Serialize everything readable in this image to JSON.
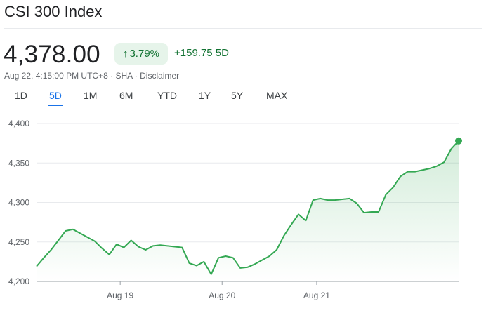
{
  "header": {
    "title": "CSI 300 Index"
  },
  "quote": {
    "price": "4,378.00",
    "pct_change": "3.79%",
    "abs_change": "+159.75 5D",
    "timestamp": "Aug 22, 4:15:00 PM UTC+8",
    "exchange": "SHA",
    "disclaimer": "Disclaimer",
    "separator": "·",
    "up_color": "#137333",
    "up_bg": "#e6f4ea"
  },
  "ranges": [
    "1D",
    "5D",
    "1M",
    "6M",
    "YTD",
    "1Y",
    "5Y",
    "MAX"
  ],
  "active_range": "5D",
  "chart_data": {
    "type": "area",
    "color": "#34a853",
    "ylim": [
      4200,
      4400
    ],
    "y_ticks": [
      "4,400",
      "4,350",
      "4,300",
      "4,250",
      "4,200"
    ],
    "y_tick_values": [
      4400,
      4350,
      4300,
      4250,
      4200
    ],
    "x_ticks": [
      "Aug 19",
      "Aug 20",
      "Aug 21"
    ],
    "x_tick_index": [
      11.5,
      25.5,
      38.5
    ],
    "values": [
      4219,
      4230,
      4240,
      4252,
      4264,
      4266,
      4261,
      4256,
      4251,
      4242,
      4234,
      4247,
      4243,
      4252,
      4244,
      4240,
      4245,
      4246,
      4245,
      4244,
      4243,
      4223,
      4220,
      4225,
      4209,
      4230,
      4232,
      4230,
      4217,
      4218,
      4222,
      4227,
      4232,
      4240,
      4258,
      4272,
      4285,
      4277,
      4303,
      4305,
      4303,
      4303,
      4304,
      4305,
      4299,
      4287,
      4288,
      4288,
      4310,
      4319,
      4333,
      4339,
      4339,
      4341,
      4343,
      4346,
      4351,
      4368,
      4378
    ]
  }
}
